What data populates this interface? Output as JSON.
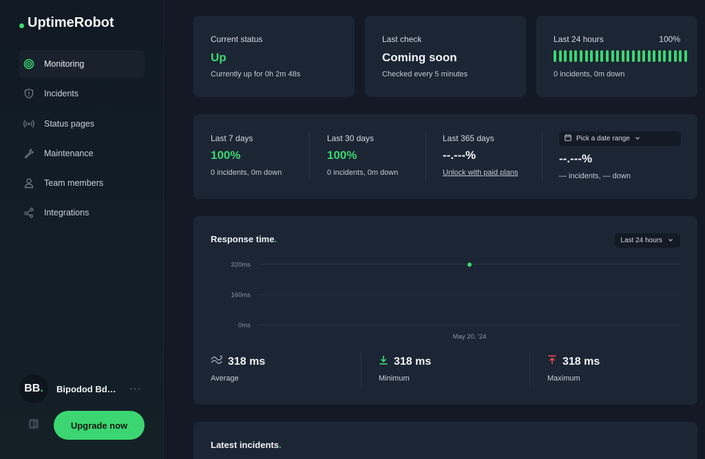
{
  "app": {
    "name": "UptimeRobot"
  },
  "sidebar": {
    "items": [
      {
        "label": "Monitoring",
        "icon": "monitoring-icon",
        "active": true
      },
      {
        "label": "Incidents",
        "icon": "shield-icon"
      },
      {
        "label": "Status pages",
        "icon": "broadcast-icon"
      },
      {
        "label": "Maintenance",
        "icon": "wrench-icon"
      },
      {
        "label": "Team members",
        "icon": "user-icon"
      },
      {
        "label": "Integrations",
        "icon": "share-icon"
      }
    ],
    "user": {
      "initials": "BB",
      "initials_dot": ".",
      "name": "Bipodod Bd…",
      "more": "···"
    },
    "upgrade_label": "Upgrade now"
  },
  "status_cards": {
    "current": {
      "label": "Current status",
      "value": "Up",
      "sub": "Currently up for 0h 2m 48s"
    },
    "last_check": {
      "label": "Last check",
      "value": "Coming soon",
      "sub": "Checked every 5 minutes"
    },
    "last24": {
      "label": "Last 24 hours",
      "percent": "100%",
      "sub": "0 incidents, 0m down",
      "bar_count": 26,
      "bar_color": "#3bd671"
    }
  },
  "uptime": {
    "d7": {
      "label": "Last 7 days",
      "value": "100%",
      "sub": "0 incidents, 0m down"
    },
    "d30": {
      "label": "Last 30 days",
      "value": "100%",
      "sub": "0 incidents, 0m down"
    },
    "d365": {
      "label": "Last 365 days",
      "value": "--.---%",
      "link": "Unlock with paid plans"
    },
    "custom": {
      "picker_label": "Pick a date range",
      "value": "--.---%",
      "sub": "— incidents, — down"
    }
  },
  "response": {
    "title": "Response time",
    "title_dot": ".",
    "range_label": "Last 24 hours",
    "metrics": [
      {
        "value": "318 ms",
        "label": "Average",
        "icon": "wave-icon"
      },
      {
        "value": "318 ms",
        "label": "Minimum",
        "icon": "arrow-down-icon"
      },
      {
        "value": "318 ms",
        "label": "Maximum",
        "icon": "arrow-up-icon"
      }
    ]
  },
  "chart_data": {
    "type": "scatter",
    "title": "",
    "xlabel": "",
    "ylabel": "",
    "y_ticks": [
      "320ms",
      "160ms",
      "0ms"
    ],
    "ylim": [
      0,
      320
    ],
    "x_tick": "May 20, '24",
    "points": [
      {
        "x": "May 20, '24",
        "y": 318
      }
    ],
    "grid": true,
    "color": "#3bd671"
  },
  "incidents": {
    "title": "Latest incidents",
    "title_dot": "."
  },
  "colors": {
    "accent": "#3bd671",
    "card": "#1c2533",
    "bg": "#131a26",
    "max_red": "#e5484d"
  }
}
